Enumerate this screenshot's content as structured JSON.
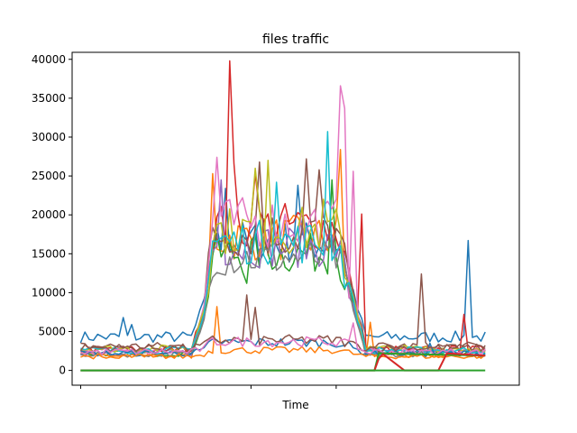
{
  "chart_data": {
    "type": "line",
    "title": "files traffic",
    "xlabel": "Time",
    "ylabel": "",
    "xlim": [
      -2,
      103
    ],
    "ylim": [
      -1900,
      40900
    ],
    "y_ticks": [
      0,
      5000,
      10000,
      15000,
      20000,
      25000,
      30000,
      35000,
      40000
    ],
    "x_ticks": [
      0,
      20,
      40,
      60,
      80
    ],
    "x_tick_labels_visible": false,
    "grid": false,
    "legend": "none",
    "colors": [
      "#1f77b4",
      "#ff7f0e",
      "#2ca02c",
      "#d62728",
      "#9467bd",
      "#8c564b",
      "#e377c2",
      "#7f7f7f",
      "#bcbd22",
      "#17becf"
    ],
    "shape_points": [
      {
        "x": 0,
        "y": 0
      },
      {
        "x": 26,
        "y": 0
      },
      {
        "x": 29,
        "y": 0.35
      },
      {
        "x": 31,
        "y": 1
      },
      {
        "x": 60,
        "y": 1
      },
      {
        "x": 61,
        "y": 0.9
      },
      {
        "x": 66,
        "y": 0.15
      },
      {
        "x": 67,
        "y": 0
      },
      {
        "x": 95,
        "y": 0
      }
    ],
    "series": [
      {
        "color": "#1f77b4",
        "base": 4300,
        "peak": 16500,
        "spikes": [
          [
            10,
            6800
          ],
          [
            12,
            5900
          ],
          [
            34,
            23400
          ],
          [
            51,
            23800
          ],
          [
            91,
            16700
          ]
        ]
      },
      {
        "color": "#ff7f0e",
        "base": 1900,
        "peak": 17000,
        "spikes": [
          [
            31,
            25300
          ],
          [
            61,
            28400
          ],
          [
            68,
            6200
          ]
        ]
      },
      {
        "color": "#2ca02c",
        "base": 2200,
        "peak": 15000,
        "spikes": [
          [
            39,
            11200
          ],
          [
            59,
            24500
          ]
        ]
      },
      {
        "color": "#d62728",
        "base": 2700,
        "peak": 18500,
        "spikes": [
          [
            35,
            39800
          ],
          [
            36,
            26600
          ],
          [
            41,
            25300
          ],
          [
            66,
            20100
          ],
          [
            90,
            7200
          ]
        ]
      },
      {
        "color": "#9467bd",
        "base": 2300,
        "peak": 16000,
        "spikes": [
          [
            33,
            24500
          ]
        ]
      },
      {
        "color": "#8c564b",
        "base": 3100,
        "peak": 17500,
        "spikes": [
          [
            42,
            26800
          ],
          [
            53,
            27200
          ],
          [
            56,
            25800
          ],
          [
            80,
            12400
          ]
        ]
      },
      {
        "color": "#e377c2",
        "base": 2500,
        "peak": 19000,
        "spikes": [
          [
            32,
            27400
          ],
          [
            61,
            36600
          ],
          [
            62,
            33700
          ],
          [
            64,
            25600
          ]
        ]
      },
      {
        "color": "#7f7f7f",
        "base": 2100,
        "peak": 14500,
        "spikes": []
      },
      {
        "color": "#bcbd22",
        "base": 2800,
        "peak": 18000,
        "spikes": [
          [
            41,
            26000
          ],
          [
            44,
            27000
          ],
          [
            57,
            22000
          ]
        ]
      },
      {
        "color": "#17becf",
        "base": 2600,
        "peak": 16500,
        "spikes": [
          [
            46,
            24200
          ],
          [
            58,
            30700
          ]
        ]
      },
      {
        "color": "#1f77b4",
        "base": 2200,
        "peak": 3600,
        "spikes": [
          [
            82,
            3500
          ]
        ]
      },
      {
        "color": "#ff7f0e",
        "base": 1800,
        "peak": 2600,
        "spikes": [
          [
            32,
            8200
          ]
        ]
      },
      {
        "color": "#8c564b",
        "base": 2900,
        "peak": 3900,
        "spikes": [
          [
            39,
            9700
          ],
          [
            41,
            8100
          ]
        ]
      },
      {
        "color": "#e377c2",
        "base": 2400,
        "peak": 3700,
        "spikes": [
          [
            64,
            6100
          ]
        ]
      }
    ],
    "flat_series": [
      {
        "color": "#2ca02c",
        "points": [
          [
            0,
            0
          ],
          [
            69,
            0
          ],
          [
            70,
            2200
          ],
          [
            95,
            1900
          ]
        ]
      },
      {
        "color": "#d62728",
        "points": [
          [
            0,
            0
          ],
          [
            69,
            0
          ],
          [
            70,
            1500
          ],
          [
            71,
            2100
          ],
          [
            76,
            0
          ],
          [
            84,
            0
          ],
          [
            86,
            2200
          ],
          [
            95,
            1900
          ]
        ]
      },
      {
        "color": "#2ca02c",
        "points": [
          [
            0,
            0
          ],
          [
            95,
            0
          ]
        ]
      }
    ]
  }
}
